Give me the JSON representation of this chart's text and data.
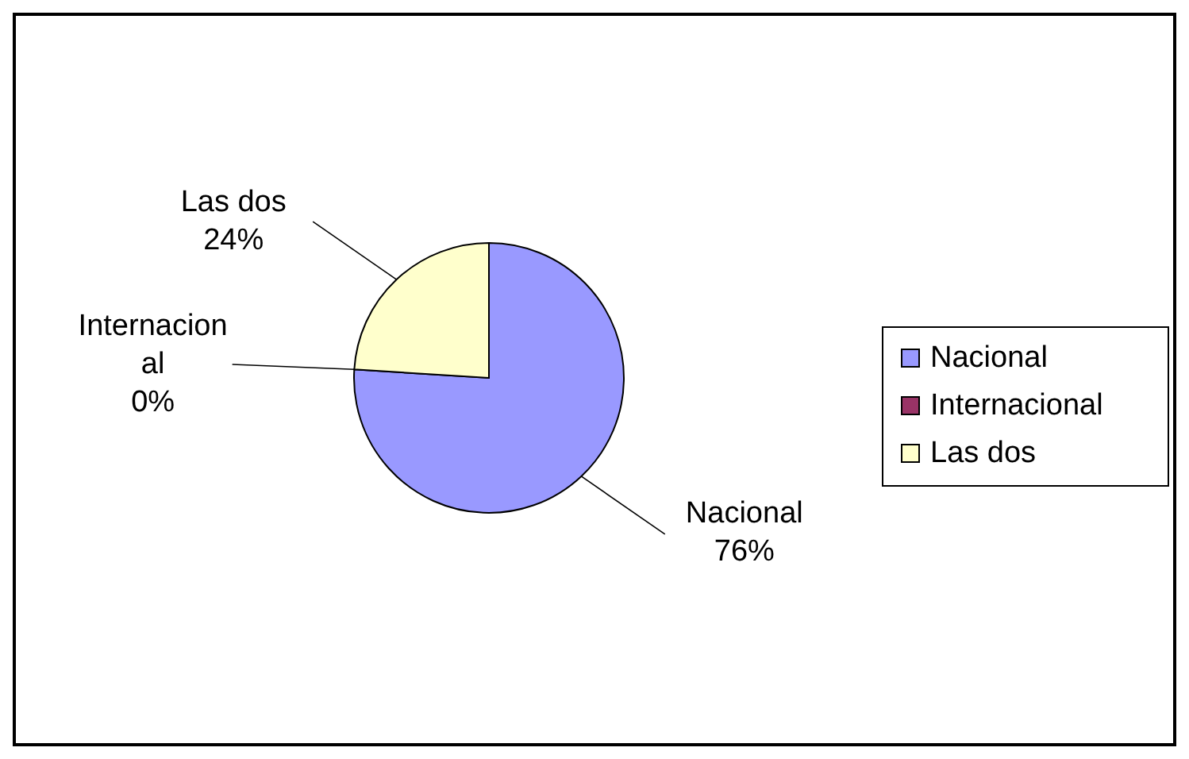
{
  "chart_data": {
    "type": "pie",
    "categories": [
      "Nacional",
      "Internacional",
      "Las dos"
    ],
    "values": [
      76,
      0,
      24
    ],
    "colors": [
      "#9999ff",
      "#993366",
      "#ffffcc"
    ],
    "value_labels": [
      "76%",
      "0%",
      "24%"
    ],
    "legend": "right"
  }
}
